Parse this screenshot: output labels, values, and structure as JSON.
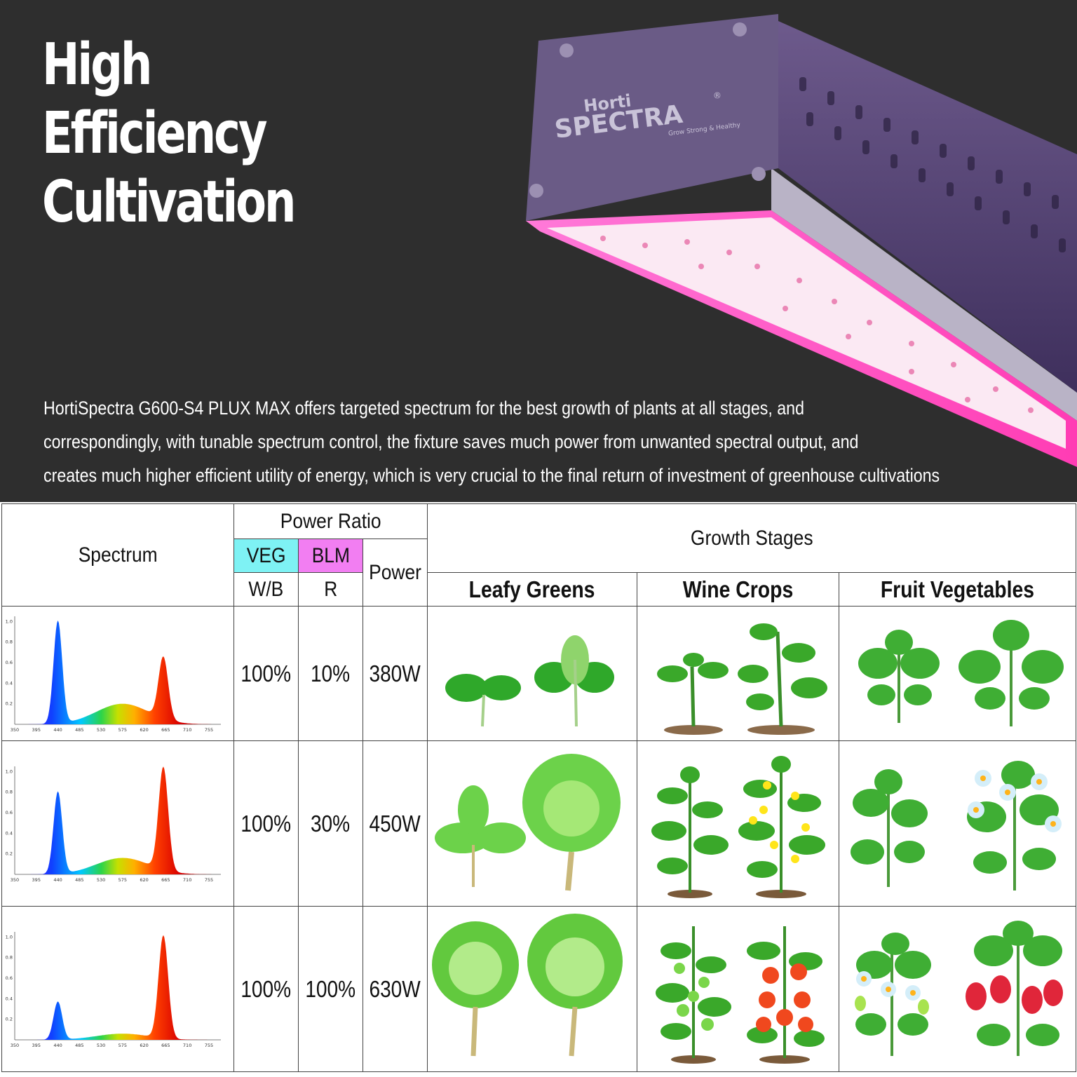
{
  "hero": {
    "title_lines": [
      "High",
      "Efficiency",
      "Cultivation"
    ],
    "description_lines": [
      "HortiSpectra G600-S4 PLUX MAX offers targeted spectrum for the best growth of plants at all stages, and",
      "correspondingly, with tunable spectrum control, the fixture saves much power from unwanted spectral output, and",
      "creates much higher efficient utility of energy,  which is very crucial to the final return of investment of greenhouse cultivations"
    ],
    "logo": {
      "brand_top": "Horti",
      "brand_main": "SPECTRA",
      "registered": "®",
      "tagline": "Grow Strong & Healthy"
    }
  },
  "table": {
    "spectrum_header": "Spectrum",
    "power_ratio_header": "Power Ratio",
    "veg_label": "VEG",
    "blm_label": "BLM",
    "wb_label": "W/B",
    "r_label": "R",
    "power_header": "Power",
    "growth_stages_header": "Growth Stages",
    "stage_headers": [
      "Leafy Greens",
      "Wine Crops",
      "Fruit Vegetables"
    ],
    "colors": {
      "veg": "#7ef2f4",
      "blm": "#f27ef2"
    },
    "rows": [
      {
        "veg": "100%",
        "blm": "10%",
        "power": "380W",
        "stage_images": [
          "sprout-icon",
          "seedling-icon",
          "strawberry-seedling-icon"
        ]
      },
      {
        "veg": "100%",
        "blm": "30%",
        "power": "450W",
        "stage_images": [
          "lettuce-icon",
          "flowering-tomato-icon",
          "flowering-strawberry-icon"
        ]
      },
      {
        "veg": "100%",
        "blm": "100%",
        "power": "630W",
        "stage_images": [
          "cabbage-icon",
          "fruiting-tomato-icon",
          "fruiting-strawberry-icon"
        ]
      }
    ]
  },
  "chart_data": [
    {
      "type": "area",
      "x_ticks": [
        "350",
        "395",
        "440",
        "485",
        "530",
        "575",
        "620",
        "665",
        "710",
        "755"
      ],
      "y_ticks": [
        "0.2",
        "0.4",
        "0.6",
        "0.8",
        "1.0"
      ],
      "ylim": [
        0,
        1.05
      ],
      "xlim": [
        350,
        780
      ],
      "peaks": {
        "blue": 1.0,
        "green": 0.2,
        "red": 0.6
      }
    },
    {
      "type": "area",
      "x_ticks": [
        "350",
        "395",
        "440",
        "485",
        "530",
        "575",
        "620",
        "665",
        "710",
        "755"
      ],
      "y_ticks": [
        "0.2",
        "0.4",
        "0.6",
        "0.8",
        "1.0"
      ],
      "ylim": [
        0,
        1.05
      ],
      "xlim": [
        350,
        780
      ],
      "peaks": {
        "blue": 0.8,
        "green": 0.16,
        "red": 1.0
      }
    },
    {
      "type": "area",
      "x_ticks": [
        "350",
        "395",
        "440",
        "485",
        "530",
        "575",
        "620",
        "665",
        "710",
        "755"
      ],
      "y_ticks": [
        "0.2",
        "0.4",
        "0.6",
        "0.8",
        "1.0"
      ],
      "ylim": [
        0,
        1.05
      ],
      "xlim": [
        350,
        780
      ],
      "peaks": {
        "blue": 0.37,
        "green": 0.06,
        "red": 1.0
      }
    }
  ]
}
